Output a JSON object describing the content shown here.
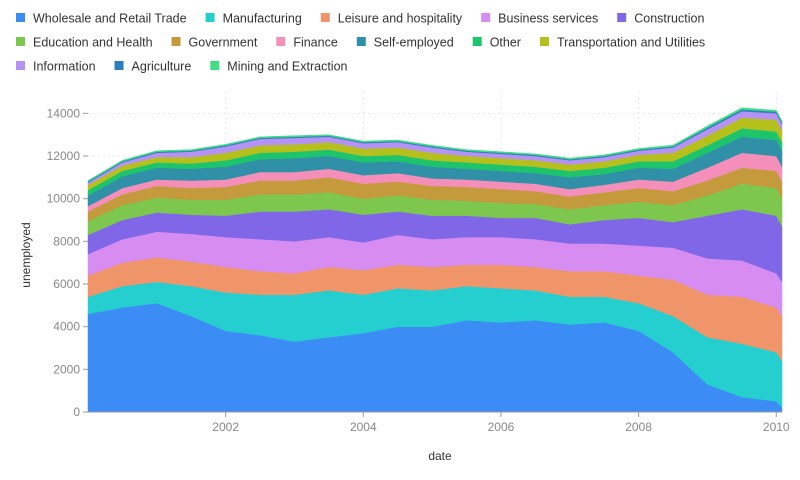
{
  "chart_data": {
    "type": "area",
    "stacked": true,
    "xlabel": "date",
    "ylabel": "unemployed",
    "xlim": [
      "2000-01",
      "2010-02"
    ],
    "ylim": [
      0,
      15000
    ],
    "x_ticks": [
      "2002",
      "2004",
      "2006",
      "2008",
      "2010"
    ],
    "y_ticks": [
      "0",
      "2000",
      "4000",
      "6000",
      "8000",
      "10000",
      "12000",
      "14000"
    ],
    "grid": true,
    "legend_position": "top-left",
    "x": [
      "2000-01",
      "2000-07",
      "2001-01",
      "2001-07",
      "2002-01",
      "2002-07",
      "2003-01",
      "2003-07",
      "2004-01",
      "2004-07",
      "2005-01",
      "2005-07",
      "2006-01",
      "2006-07",
      "2007-01",
      "2007-07",
      "2008-01",
      "2008-07",
      "2009-01",
      "2009-07",
      "2010-01",
      "2010-02"
    ],
    "series": [
      {
        "name": "Wholesale and Retail Trade",
        "color": "#3b8cf5",
        "values": [
          4600,
          4900,
          5100,
          4500,
          3800,
          3600,
          3300,
          3500,
          3700,
          4000,
          4000,
          4300,
          4200,
          4300,
          4100,
          4200,
          3800,
          2800,
          1300,
          700,
          500,
          200
        ]
      },
      {
        "name": "Manufacturing",
        "color": "#25cfd0",
        "values": [
          800,
          1000,
          1000,
          1400,
          1800,
          1900,
          2200,
          2200,
          1800,
          1800,
          1700,
          1600,
          1600,
          1400,
          1300,
          1200,
          1300,
          1700,
          2200,
          2500,
          2300,
          2200
        ]
      },
      {
        "name": "Leisure and hospitality",
        "color": "#f0956a",
        "values": [
          1000,
          1100,
          1150,
          1150,
          1200,
          1100,
          1000,
          1100,
          1150,
          1100,
          1100,
          1000,
          1100,
          1100,
          1200,
          1200,
          1300,
          1700,
          2000,
          2200,
          2100,
          2100
        ]
      },
      {
        "name": "Business services",
        "color": "#d78cf2",
        "values": [
          1000,
          1100,
          1200,
          1300,
          1400,
          1500,
          1500,
          1400,
          1300,
          1400,
          1300,
          1300,
          1300,
          1300,
          1300,
          1300,
          1400,
          1500,
          1700,
          1700,
          1600,
          1600
        ]
      },
      {
        "name": "Construction",
        "color": "#8067e8",
        "values": [
          900,
          900,
          900,
          900,
          1000,
          1300,
          1400,
          1300,
          1300,
          1100,
          1100,
          1000,
          900,
          1000,
          900,
          1100,
          1300,
          1200,
          2000,
          2400,
          2700,
          2600
        ]
      },
      {
        "name": "Education and Health",
        "color": "#7dc74f",
        "values": [
          650,
          700,
          700,
          700,
          750,
          800,
          800,
          800,
          750,
          750,
          750,
          700,
          700,
          650,
          700,
          700,
          750,
          800,
          950,
          1200,
          1300,
          1300
        ]
      },
      {
        "name": "Government",
        "color": "#c49a3c",
        "values": [
          450,
          500,
          550,
          550,
          600,
          650,
          650,
          700,
          700,
          650,
          650,
          650,
          650,
          600,
          600,
          600,
          650,
          650,
          700,
          750,
          800,
          800
        ]
      },
      {
        "name": "Finance",
        "color": "#f38fb9",
        "values": [
          250,
          300,
          300,
          350,
          350,
          400,
          400,
          400,
          400,
          400,
          350,
          350,
          350,
          350,
          350,
          350,
          400,
          450,
          600,
          700,
          700,
          700
        ]
      },
      {
        "name": "Self-employed",
        "color": "#2f90a8",
        "values": [
          500,
          550,
          550,
          550,
          600,
          600,
          650,
          600,
          600,
          550,
          550,
          500,
          500,
          500,
          550,
          500,
          550,
          600,
          700,
          750,
          750,
          750
        ]
      },
      {
        "name": "Other",
        "color": "#1ec46c",
        "values": [
          250,
          250,
          250,
          250,
          300,
          300,
          300,
          300,
          300,
          300,
          300,
          300,
          300,
          300,
          300,
          300,
          300,
          350,
          350,
          400,
          400,
          400
        ]
      },
      {
        "name": "Transportation and Utilities",
        "color": "#b6c01d",
        "values": [
          250,
          250,
          250,
          300,
          350,
          350,
          350,
          350,
          350,
          350,
          350,
          300,
          300,
          300,
          300,
          300,
          300,
          400,
          450,
          500,
          550,
          550
        ]
      },
      {
        "name": "Information",
        "color": "#b593f4",
        "values": [
          100,
          150,
          200,
          250,
          300,
          300,
          300,
          250,
          250,
          250,
          250,
          200,
          200,
          200,
          200,
          200,
          200,
          250,
          300,
          300,
          300,
          300
        ]
      },
      {
        "name": "Agriculture",
        "color": "#2b7fc0",
        "values": [
          50,
          50,
          50,
          50,
          50,
          50,
          50,
          50,
          50,
          50,
          50,
          50,
          50,
          50,
          50,
          50,
          50,
          50,
          80,
          80,
          80,
          80
        ]
      },
      {
        "name": "Mining and Extraction",
        "color": "#40dd85",
        "values": [
          50,
          50,
          50,
          50,
          50,
          50,
          50,
          50,
          50,
          50,
          50,
          50,
          50,
          50,
          50,
          50,
          50,
          60,
          80,
          80,
          60,
          60
        ]
      }
    ]
  }
}
